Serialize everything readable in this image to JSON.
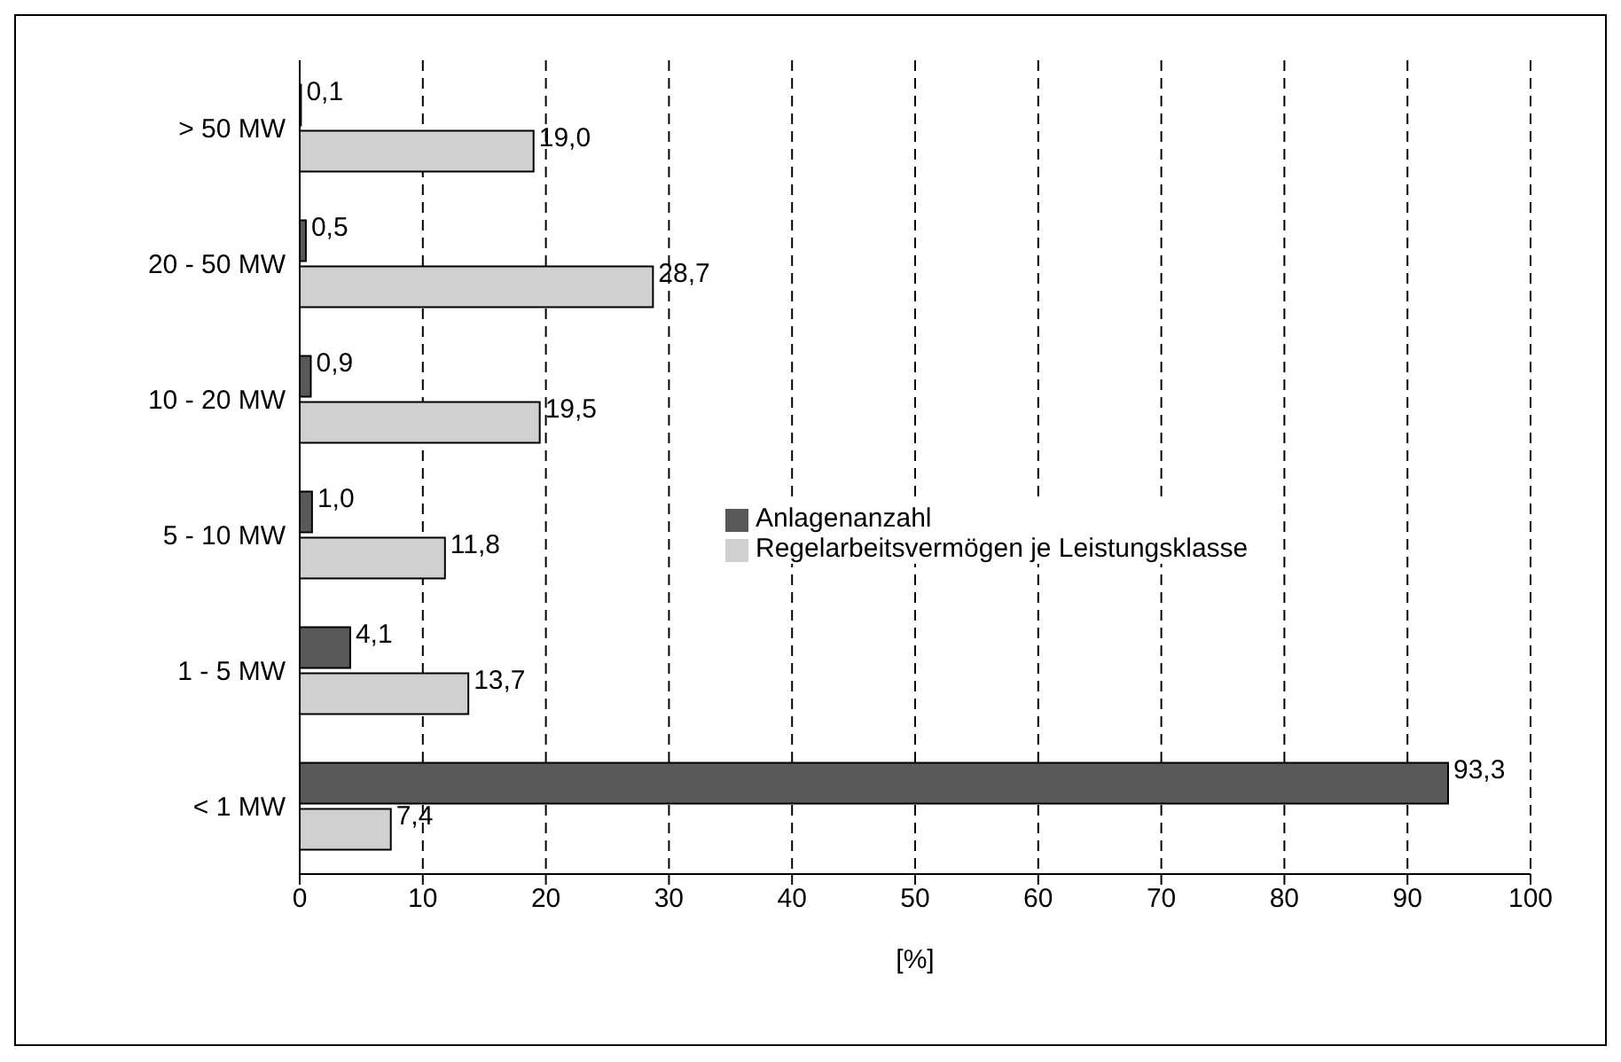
{
  "chart_data": {
    "type": "bar",
    "orientation": "horizontal",
    "categories": [
      "> 50 MW",
      "20 - 50 MW",
      "10 - 20 MW",
      "5 - 10 MW",
      "1 - 5 MW",
      "< 1 MW"
    ],
    "series": [
      {
        "name": "Anlagenanzahl",
        "color": "#595959",
        "values": [
          0.1,
          0.5,
          0.9,
          1.0,
          4.1,
          93.3
        ],
        "value_labels": [
          "0,1",
          "0,5",
          "0,9",
          "1,0",
          "4,1",
          "93,3"
        ]
      },
      {
        "name": "Regelarbeitsvermögen je Leistungsklasse",
        "color": "#d0d0d0",
        "values": [
          19.0,
          28.7,
          19.5,
          11.8,
          13.7,
          7.4
        ],
        "value_labels": [
          "19,0",
          "28,7",
          "19,5",
          "11,8",
          "13,7",
          "7,4"
        ]
      }
    ],
    "xlabel": "[%]",
    "xlim": [
      0,
      100
    ],
    "xticks": [
      0,
      10,
      20,
      30,
      40,
      50,
      60,
      70,
      80,
      90,
      100
    ],
    "grid": "x",
    "line_style": "dashed",
    "legend": "right"
  }
}
